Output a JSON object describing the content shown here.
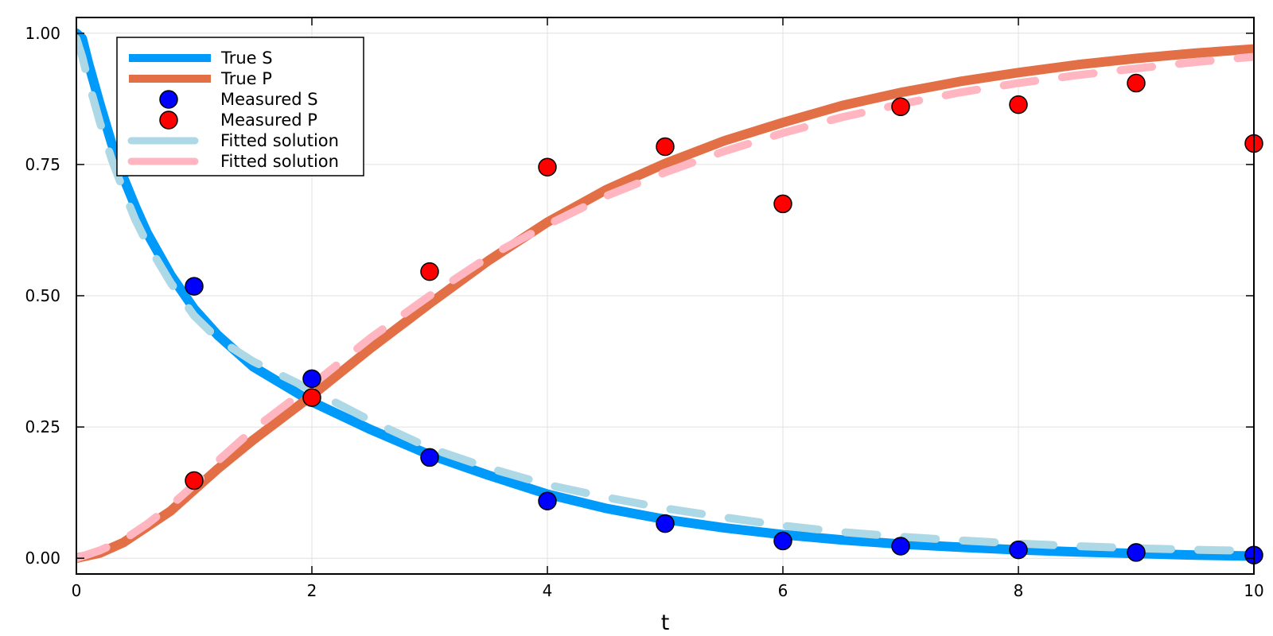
{
  "chart_data": {
    "type": "line",
    "xlabel": "t",
    "ylabel": "",
    "xlim": [
      0,
      10
    ],
    "ylim": [
      -0.03,
      1.03
    ],
    "xticks": [
      0,
      2,
      4,
      6,
      8,
      10
    ],
    "xtick_labels": [
      "0",
      "2",
      "4",
      "6",
      "8",
      "10"
    ],
    "yticks": [
      0,
      0.25,
      0.5,
      0.75,
      1.0
    ],
    "ytick_labels": [
      "0.00",
      "0.25",
      "0.50",
      "0.75",
      "1.00"
    ],
    "grid": true,
    "legend_position": "top-left",
    "legend": [
      "True S",
      "True P",
      "Measured S",
      "Measured P",
      "Fitted solution",
      "Fitted solution"
    ],
    "series": [
      {
        "name": "True S",
        "kind": "line",
        "color": "#009AFA",
        "x": [
          0,
          0.05,
          0.1,
          0.2,
          0.3,
          0.4,
          0.5,
          0.6,
          0.8,
          1.0,
          1.2,
          1.5,
          2.0,
          2.5,
          3.0,
          3.5,
          4.0,
          4.5,
          5.0,
          5.5,
          6.0,
          6.5,
          7.0,
          7.5,
          8.0,
          8.5,
          9.0,
          9.5,
          10.0
        ],
        "y": [
          1.0,
          0.99,
          0.945,
          0.865,
          0.79,
          0.725,
          0.67,
          0.62,
          0.54,
          0.475,
          0.425,
          0.365,
          0.298,
          0.245,
          0.197,
          0.158,
          0.122,
          0.095,
          0.074,
          0.058,
          0.045,
          0.035,
          0.027,
          0.021,
          0.016,
          0.012,
          0.009,
          0.006,
          0.004
        ]
      },
      {
        "name": "True P",
        "kind": "line",
        "color": "#E26F46",
        "x": [
          0,
          0.2,
          0.4,
          0.6,
          0.8,
          1.0,
          1.2,
          1.5,
          2.0,
          2.5,
          3.0,
          3.5,
          4.0,
          4.5,
          5.0,
          5.5,
          6.0,
          6.5,
          7.0,
          7.5,
          8.0,
          8.5,
          9.0,
          9.5,
          10.0
        ],
        "y": [
          0.0,
          0.01,
          0.03,
          0.06,
          0.09,
          0.13,
          0.17,
          0.225,
          0.31,
          0.4,
          0.485,
          0.567,
          0.64,
          0.702,
          0.752,
          0.795,
          0.83,
          0.862,
          0.887,
          0.908,
          0.925,
          0.94,
          0.952,
          0.962,
          0.97
        ]
      },
      {
        "name": "Measured S",
        "kind": "scatter",
        "color": "#0000FF",
        "x": [
          1,
          2,
          3,
          4,
          5,
          6,
          7,
          8,
          9,
          10
        ],
        "y": [
          0.518,
          0.342,
          0.192,
          0.109,
          0.066,
          0.033,
          0.023,
          0.016,
          0.011,
          0.006
        ]
      },
      {
        "name": "Measured P",
        "kind": "scatter",
        "color": "#FF0000",
        "x": [
          1,
          2,
          3,
          4,
          5,
          6,
          7,
          8,
          9,
          10
        ],
        "y": [
          0.148,
          0.306,
          0.546,
          0.745,
          0.784,
          0.675,
          0.86,
          0.864,
          0.905,
          0.79
        ]
      },
      {
        "name": "Fitted solution",
        "kind": "dashed",
        "color": "#ADD8E6",
        "x": [
          0,
          0.05,
          0.1,
          0.2,
          0.3,
          0.4,
          0.5,
          0.6,
          0.8,
          1.0,
          1.2,
          1.5,
          2.0,
          2.5,
          3.0,
          3.5,
          4.0,
          4.5,
          5.0,
          5.5,
          6.0,
          6.5,
          7.0,
          7.5,
          8.0,
          8.5,
          9.0,
          9.5,
          10.0
        ],
        "y": [
          0.99,
          0.955,
          0.91,
          0.83,
          0.76,
          0.7,
          0.645,
          0.6,
          0.525,
          0.462,
          0.418,
          0.375,
          0.32,
          0.262,
          0.21,
          0.172,
          0.14,
          0.116,
          0.095,
          0.078,
          0.062,
          0.05,
          0.041,
          0.034,
          0.028,
          0.023,
          0.019,
          0.016,
          0.014
        ]
      },
      {
        "name": "Fitted solution",
        "kind": "dashed",
        "color": "#FFB6C1",
        "x": [
          0,
          0.2,
          0.4,
          0.6,
          0.8,
          1.0,
          1.2,
          1.5,
          2.0,
          2.5,
          3.0,
          3.5,
          4.0,
          4.5,
          5.0,
          5.5,
          6.0,
          6.5,
          7.0,
          7.5,
          8.0,
          8.5,
          9.0,
          9.5,
          10.0
        ],
        "y": [
          0.0,
          0.015,
          0.035,
          0.065,
          0.1,
          0.14,
          0.185,
          0.245,
          0.33,
          0.42,
          0.5,
          0.574,
          0.635,
          0.69,
          0.735,
          0.775,
          0.81,
          0.84,
          0.865,
          0.887,
          0.905,
          0.92,
          0.933,
          0.945,
          0.955
        ]
      }
    ]
  }
}
